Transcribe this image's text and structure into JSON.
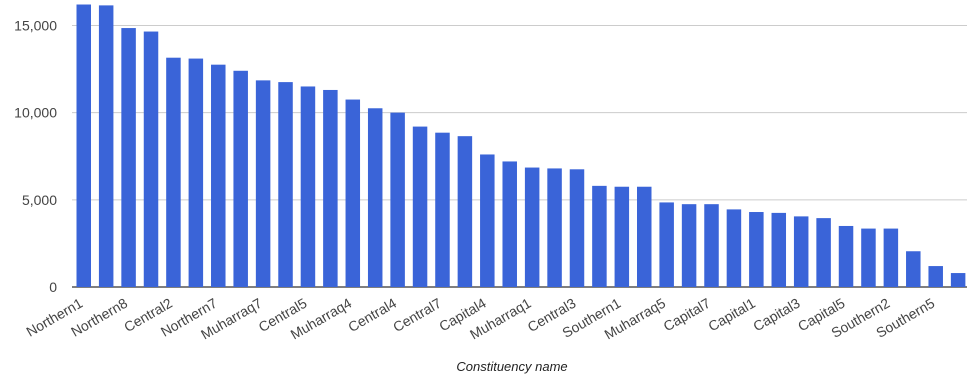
{
  "chart_data": {
    "type": "bar",
    "title": "",
    "xlabel": "Constituency name",
    "ylabel": "",
    "ylim": [
      0,
      16000
    ],
    "yticks": [
      0,
      5000,
      10000,
      15000
    ],
    "ytick_labels": [
      "0",
      "5,000",
      "10,000",
      "15,000"
    ],
    "grid": true,
    "legend": "none",
    "bar_color": "#3A64D8",
    "categories": [
      "Northern1",
      "",
      "Northern8",
      "",
      "Central2",
      "",
      "Northern7",
      "",
      "Muharraq7",
      "",
      "Central5",
      "",
      "Muharraq4",
      "",
      "Central4",
      "",
      "Central7",
      "",
      "Capital4",
      "",
      "Muharraq1",
      "",
      "Central3",
      "",
      "Southern1",
      "",
      "Muharraq5",
      "",
      "Capital7",
      "",
      "Capital1",
      "",
      "Capital3",
      "",
      "Capital5",
      "",
      "Southern2",
      "",
      "Southern5",
      ""
    ],
    "values": [
      16200,
      16150,
      14850,
      14650,
      13150,
      13100,
      12750,
      12400,
      11850,
      11750,
      11500,
      11300,
      10750,
      10250,
      10000,
      9200,
      8850,
      8650,
      7600,
      7200,
      6850,
      6800,
      6750,
      5800,
      5750,
      5750,
      4850,
      4750,
      4750,
      4450,
      4300,
      4250,
      4050,
      3950,
      3500,
      3350,
      3350,
      2050,
      1200,
      800
    ]
  }
}
